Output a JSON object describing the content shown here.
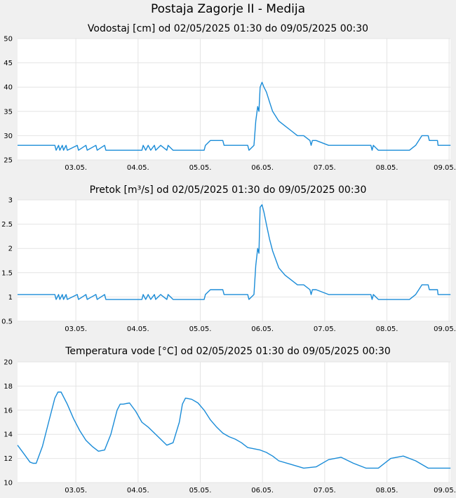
{
  "page": {
    "title": "Postaja Zagorje II - Medija"
  },
  "colors": {
    "line": "#1a8cd8",
    "plot_bg": "#ffffff",
    "page_bg": "#f0f0f0",
    "grid": "#e4e4e4"
  },
  "chart_data": [
    {
      "type": "line",
      "title": "Vodostaj [cm] od 02/05/2025 01:30 do 09/05/2025 00:30",
      "x_labels": [
        "03.05.",
        "04.05.",
        "05.05.",
        "06.05.",
        "07.05.",
        "08.05.",
        "09.05."
      ],
      "y_ticks": [
        "25",
        "30",
        "35",
        "40",
        "45",
        "50"
      ],
      "ylim": [
        25,
        50
      ],
      "grid": true,
      "series": [
        {
          "x": [
            0,
            0.6,
            0.62,
            0.66,
            0.68,
            0.72,
            0.74,
            0.78,
            0.8,
            0.96,
            0.98,
            1.1,
            1.12,
            1.26,
            1.28,
            1.4,
            1.42,
            1.58,
            2.0,
            2.02,
            2.06,
            2.1,
            2.14,
            2.2,
            2.22,
            2.3,
            2.4,
            2.42,
            2.5,
            2.7,
            3.0,
            3.02,
            3.1,
            3.3,
            3.32,
            3.4,
            3.46,
            3.6,
            3.7,
            3.72,
            3.8,
            3.83,
            3.86,
            3.88,
            3.9,
            3.93,
            3.96,
            4.0,
            4.05,
            4.1,
            4.2,
            4.3,
            4.4,
            4.5,
            4.6,
            4.7,
            4.72,
            4.74,
            4.8,
            5.0,
            5.5,
            5.68,
            5.7,
            5.72,
            5.8,
            6.0,
            6.3,
            6.4,
            6.45,
            6.5,
            6.6,
            6.62,
            6.7,
            6.75,
            6.76,
            6.9,
            6.94,
            6.96
          ],
          "y": [
            28,
            28,
            27,
            28,
            27,
            28,
            27,
            28,
            27,
            28,
            27,
            28,
            27,
            28,
            27,
            28,
            27,
            27,
            27,
            28,
            27,
            28,
            27,
            28,
            27,
            28,
            27,
            28,
            27,
            27,
            27,
            28,
            29,
            29,
            28,
            28,
            28,
            28,
            28,
            27,
            28,
            33,
            36,
            35,
            40,
            41,
            40,
            39,
            37,
            35,
            33,
            32,
            31,
            30,
            30,
            29,
            28,
            29,
            29,
            28,
            28,
            28,
            27,
            28,
            27,
            27,
            27,
            28,
            29,
            30,
            30,
            29,
            29,
            29,
            28,
            28,
            28,
            28
          ]
        }
      ]
    },
    {
      "type": "line",
      "title": "Pretok [m³/s] od 02/05/2025 01:30 do 09/05/2025 00:30",
      "x_labels": [
        "03.05.",
        "04.05.",
        "05.05.",
        "06.05.",
        "07.05.",
        "08.05.",
        "09.05."
      ],
      "y_ticks": [
        "0.5",
        "1",
        "1.5",
        "2",
        "2.5",
        "3"
      ],
      "ylim": [
        0.5,
        3
      ],
      "grid": true,
      "series": [
        {
          "x": [
            0,
            0.6,
            0.62,
            0.66,
            0.68,
            0.72,
            0.74,
            0.78,
            0.8,
            0.96,
            0.98,
            1.1,
            1.12,
            1.26,
            1.28,
            1.4,
            1.42,
            1.58,
            2.0,
            2.02,
            2.06,
            2.1,
            2.14,
            2.2,
            2.22,
            2.3,
            2.4,
            2.42,
            2.5,
            2.7,
            3.0,
            3.02,
            3.1,
            3.3,
            3.32,
            3.4,
            3.46,
            3.6,
            3.7,
            3.72,
            3.8,
            3.83,
            3.86,
            3.88,
            3.9,
            3.93,
            3.96,
            4.0,
            4.05,
            4.1,
            4.2,
            4.3,
            4.4,
            4.5,
            4.6,
            4.7,
            4.72,
            4.74,
            4.8,
            5.0,
            5.5,
            5.68,
            5.7,
            5.72,
            5.8,
            6.0,
            6.3,
            6.4,
            6.45,
            6.5,
            6.6,
            6.62,
            6.7,
            6.75,
            6.76,
            6.9,
            6.94,
            6.96
          ],
          "y": [
            1.05,
            1.05,
            0.95,
            1.05,
            0.95,
            1.05,
            0.95,
            1.05,
            0.95,
            1.05,
            0.95,
            1.05,
            0.95,
            1.05,
            0.95,
            1.05,
            0.95,
            0.95,
            0.95,
            1.05,
            0.95,
            1.05,
            0.95,
            1.05,
            0.95,
            1.05,
            0.95,
            1.05,
            0.95,
            0.95,
            0.95,
            1.05,
            1.15,
            1.15,
            1.05,
            1.05,
            1.05,
            1.05,
            1.05,
            0.95,
            1.05,
            1.65,
            2.0,
            1.9,
            2.85,
            2.9,
            2.75,
            2.5,
            2.2,
            1.95,
            1.6,
            1.45,
            1.35,
            1.25,
            1.25,
            1.15,
            1.05,
            1.15,
            1.15,
            1.05,
            1.05,
            1.05,
            0.95,
            1.05,
            0.95,
            0.95,
            0.95,
            1.05,
            1.15,
            1.25,
            1.25,
            1.15,
            1.15,
            1.15,
            1.05,
            1.05,
            1.05,
            1.05
          ]
        }
      ]
    },
    {
      "type": "line",
      "title": "Temperatura vode [°C] od 02/05/2025 01:30 do 09/05/2025 00:30",
      "x_labels": [
        "03.05.",
        "04.05.",
        "05.05.",
        "06.05.",
        "07.05.",
        "08.05.",
        "09.05."
      ],
      "y_ticks": [
        "10",
        "12",
        "14",
        "16",
        "18",
        "20"
      ],
      "ylim": [
        10,
        20
      ],
      "grid": true,
      "series": [
        {
          "x": [
            0,
            0.1,
            0.2,
            0.25,
            0.3,
            0.4,
            0.5,
            0.6,
            0.65,
            0.7,
            0.8,
            0.9,
            1.0,
            1.1,
            1.2,
            1.3,
            1.4,
            1.5,
            1.6,
            1.65,
            1.7,
            1.8,
            1.9,
            2.0,
            2.1,
            2.2,
            2.3,
            2.4,
            2.5,
            2.6,
            2.65,
            2.7,
            2.8,
            2.9,
            3.0,
            3.1,
            3.2,
            3.3,
            3.4,
            3.5,
            3.6,
            3.7,
            3.8,
            3.9,
            4.0,
            4.1,
            4.2,
            4.4,
            4.6,
            4.8,
            5.0,
            5.2,
            5.4,
            5.6,
            5.8,
            6.0,
            6.2,
            6.4,
            6.6,
            6.8,
            6.96
          ],
          "y": [
            13.1,
            12.4,
            11.7,
            11.6,
            11.6,
            13.0,
            15.0,
            17.0,
            17.5,
            17.5,
            16.5,
            15.3,
            14.3,
            13.5,
            13.0,
            12.6,
            12.7,
            14.0,
            16.0,
            16.5,
            16.5,
            16.6,
            15.9,
            15.0,
            14.6,
            14.1,
            13.6,
            13.1,
            13.3,
            15.0,
            16.5,
            17.0,
            16.9,
            16.6,
            16.0,
            15.2,
            14.6,
            14.1,
            13.8,
            13.6,
            13.3,
            12.9,
            12.8,
            12.7,
            12.5,
            12.2,
            11.8,
            11.5,
            11.2,
            11.3,
            11.9,
            12.1,
            11.6,
            11.2,
            11.2,
            12.0,
            12.2,
            11.8,
            11.2,
            11.2,
            11.2
          ]
        }
      ]
    }
  ]
}
